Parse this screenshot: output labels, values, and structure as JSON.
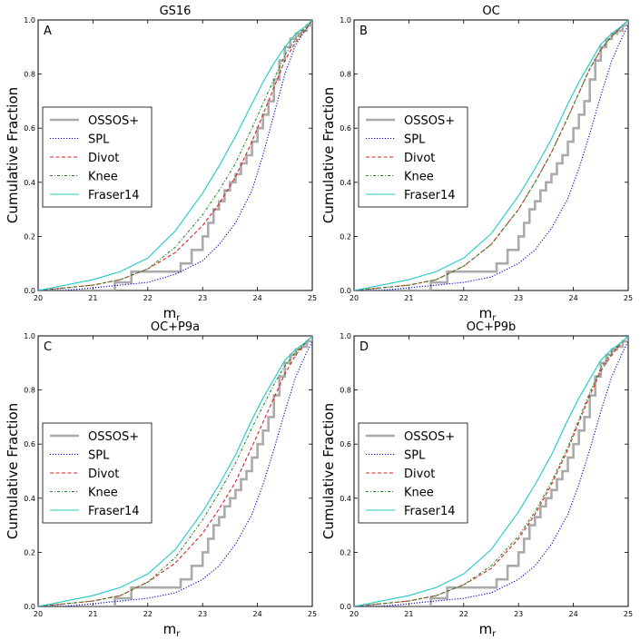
{
  "figure": {
    "type": "cumulative_fraction_grid",
    "series_colors": {
      "OSSOS+": "#aaaaaa",
      "SPL": "#0000cc",
      "Divot": "#dd2222",
      "Knee": "#228822",
      "Fraser14": "#22c9c9"
    }
  },
  "chart_data": [
    {
      "type": "line",
      "title": "GS16",
      "letter": "A",
      "xlabel": "m",
      "xlabel_sub": "r",
      "ylabel": "Cumulative Fraction",
      "xlim": [
        20,
        25
      ],
      "ylim": [
        0,
        1
      ],
      "xticks": [
        "20",
        "21",
        "22",
        "23",
        "24",
        "25"
      ],
      "yticks": [
        "0.0",
        "0.2",
        "0.4",
        "0.6",
        "0.8",
        "1.0"
      ],
      "legend": [
        "OSSOS+",
        "SPL",
        "Divot",
        "Knee",
        "Fraser14"
      ],
      "legend_loc": "center-left",
      "series": [
        {
          "name": "OSSOS+",
          "style": "solid-thick",
          "x": [
            20.0,
            21.0,
            21.4,
            21.7,
            22.0,
            22.4,
            22.6,
            22.8,
            23.0,
            23.1,
            23.2,
            23.3,
            23.4,
            23.5,
            23.6,
            23.7,
            23.8,
            23.9,
            24.0,
            24.1,
            24.2,
            24.3,
            24.4,
            24.5,
            24.6,
            24.7,
            24.8,
            24.9,
            25.0
          ],
          "y": [
            0.0,
            0.0,
            0.03,
            0.07,
            0.07,
            0.07,
            0.1,
            0.15,
            0.2,
            0.25,
            0.3,
            0.33,
            0.37,
            0.4,
            0.43,
            0.47,
            0.5,
            0.55,
            0.6,
            0.65,
            0.7,
            0.78,
            0.85,
            0.9,
            0.93,
            0.95,
            0.96,
            0.98,
            1.0
          ]
        },
        {
          "name": "SPL",
          "style": "dotted",
          "x": [
            20.0,
            20.5,
            21.0,
            21.5,
            22.0,
            22.5,
            23.0,
            23.3,
            23.6,
            23.9,
            24.1,
            24.3,
            24.5,
            24.7,
            24.9,
            25.0
          ],
          "y": [
            0.0,
            0.0,
            0.01,
            0.02,
            0.03,
            0.06,
            0.11,
            0.17,
            0.25,
            0.37,
            0.5,
            0.65,
            0.8,
            0.91,
            0.97,
            1.0
          ]
        },
        {
          "name": "Divot",
          "style": "dashed",
          "x": [
            20.0,
            20.5,
            21.0,
            21.5,
            22.0,
            22.5,
            23.0,
            23.3,
            23.6,
            23.9,
            24.1,
            24.3,
            24.5,
            24.7,
            24.9,
            25.0
          ],
          "y": [
            0.0,
            0.01,
            0.02,
            0.04,
            0.08,
            0.14,
            0.24,
            0.32,
            0.42,
            0.55,
            0.65,
            0.75,
            0.85,
            0.92,
            0.97,
            1.0
          ]
        },
        {
          "name": "Knee",
          "style": "dashdot",
          "x": [
            20.0,
            20.5,
            21.0,
            21.5,
            22.0,
            22.5,
            23.0,
            23.3,
            23.6,
            23.9,
            24.1,
            24.3,
            24.5,
            24.7,
            24.9,
            25.0
          ],
          "y": [
            0.0,
            0.01,
            0.02,
            0.04,
            0.08,
            0.16,
            0.28,
            0.37,
            0.47,
            0.6,
            0.69,
            0.78,
            0.87,
            0.93,
            0.98,
            1.0
          ]
        },
        {
          "name": "Fraser14",
          "style": "solid",
          "x": [
            20.0,
            20.5,
            21.0,
            21.5,
            22.0,
            22.5,
            23.0,
            23.3,
            23.6,
            23.9,
            24.1,
            24.3,
            24.5,
            24.7,
            24.9,
            25.0
          ],
          "y": [
            0.0,
            0.02,
            0.04,
            0.07,
            0.12,
            0.22,
            0.36,
            0.46,
            0.57,
            0.69,
            0.77,
            0.84,
            0.9,
            0.95,
            0.98,
            1.0
          ]
        }
      ]
    },
    {
      "type": "line",
      "title": "OC",
      "letter": "B",
      "xlabel": "m",
      "xlabel_sub": "r",
      "ylabel": "Cumulative Fraction",
      "xlim": [
        20,
        25
      ],
      "ylim": [
        0,
        1
      ],
      "xticks": [
        "20",
        "21",
        "22",
        "23",
        "24",
        "25"
      ],
      "yticks": [
        "0.0",
        "0.2",
        "0.4",
        "0.6",
        "0.8",
        "1.0"
      ],
      "legend": [
        "OSSOS+",
        "SPL",
        "Divot",
        "Knee",
        "Fraser14"
      ],
      "legend_loc": "center-left",
      "series": [
        {
          "name": "OSSOS+",
          "style": "solid-thick",
          "x": [
            20.0,
            21.0,
            21.4,
            21.7,
            22.0,
            22.4,
            22.6,
            22.8,
            23.0,
            23.1,
            23.2,
            23.3,
            23.4,
            23.5,
            23.6,
            23.7,
            23.8,
            23.9,
            24.0,
            24.1,
            24.2,
            24.3,
            24.4,
            24.5,
            24.6,
            24.7,
            24.8,
            24.9,
            25.0
          ],
          "y": [
            0.0,
            0.0,
            0.03,
            0.07,
            0.07,
            0.07,
            0.1,
            0.15,
            0.2,
            0.25,
            0.3,
            0.33,
            0.37,
            0.4,
            0.43,
            0.47,
            0.5,
            0.55,
            0.6,
            0.65,
            0.7,
            0.78,
            0.85,
            0.9,
            0.93,
            0.95,
            0.96,
            0.98,
            1.0
          ]
        },
        {
          "name": "SPL",
          "style": "dotted",
          "x": [
            20.0,
            20.5,
            21.0,
            21.5,
            22.0,
            22.5,
            23.0,
            23.3,
            23.6,
            23.9,
            24.1,
            24.3,
            24.5,
            24.7,
            24.9,
            25.0
          ],
          "y": [
            0.0,
            0.0,
            0.01,
            0.02,
            0.03,
            0.05,
            0.1,
            0.15,
            0.23,
            0.34,
            0.45,
            0.58,
            0.72,
            0.85,
            0.94,
            0.98
          ]
        },
        {
          "name": "Divot",
          "style": "dashed",
          "x": [
            20.0,
            20.5,
            21.0,
            21.5,
            22.0,
            22.5,
            23.0,
            23.3,
            23.6,
            23.9,
            24.1,
            24.3,
            24.5,
            24.7,
            24.9,
            25.0
          ],
          "y": [
            0.0,
            0.01,
            0.02,
            0.04,
            0.09,
            0.17,
            0.3,
            0.4,
            0.51,
            0.64,
            0.73,
            0.82,
            0.89,
            0.94,
            0.98,
            1.0
          ]
        },
        {
          "name": "Knee",
          "style": "dashdot",
          "x": [
            20.0,
            20.5,
            21.0,
            21.5,
            22.0,
            22.5,
            23.0,
            23.3,
            23.6,
            23.9,
            24.1,
            24.3,
            24.5,
            24.7,
            24.9,
            25.0
          ],
          "y": [
            0.0,
            0.01,
            0.02,
            0.04,
            0.09,
            0.17,
            0.3,
            0.4,
            0.51,
            0.64,
            0.73,
            0.82,
            0.89,
            0.94,
            0.98,
            1.0
          ]
        },
        {
          "name": "Fraser14",
          "style": "solid",
          "x": [
            20.0,
            20.5,
            21.0,
            21.5,
            22.0,
            22.5,
            23.0,
            23.3,
            23.6,
            23.9,
            24.1,
            24.3,
            24.5,
            24.7,
            24.9,
            25.0
          ],
          "y": [
            0.0,
            0.02,
            0.04,
            0.07,
            0.12,
            0.21,
            0.35,
            0.45,
            0.56,
            0.69,
            0.77,
            0.84,
            0.91,
            0.95,
            0.98,
            1.0
          ]
        }
      ]
    },
    {
      "type": "line",
      "title": "OC+P9a",
      "letter": "C",
      "xlabel": "m",
      "xlabel_sub": "r",
      "ylabel": "Cumulative Fraction",
      "xlim": [
        20,
        25
      ],
      "ylim": [
        0,
        1
      ],
      "xticks": [
        "20",
        "21",
        "22",
        "23",
        "24",
        "25"
      ],
      "yticks": [
        "0.0",
        "0.2",
        "0.4",
        "0.6",
        "0.8",
        "1.0"
      ],
      "legend": [
        "OSSOS+",
        "SPL",
        "Divot",
        "Knee",
        "Fraser14"
      ],
      "legend_loc": "center-left",
      "series": [
        {
          "name": "OSSOS+",
          "style": "solid-thick",
          "x": [
            20.0,
            21.0,
            21.4,
            21.7,
            22.0,
            22.4,
            22.6,
            22.8,
            23.0,
            23.1,
            23.2,
            23.3,
            23.4,
            23.5,
            23.6,
            23.7,
            23.8,
            23.9,
            24.0,
            24.1,
            24.2,
            24.3,
            24.4,
            24.5,
            24.6,
            24.7,
            24.8,
            24.9,
            25.0
          ],
          "y": [
            0.0,
            0.0,
            0.03,
            0.07,
            0.07,
            0.07,
            0.1,
            0.15,
            0.2,
            0.25,
            0.3,
            0.33,
            0.37,
            0.4,
            0.43,
            0.47,
            0.5,
            0.55,
            0.6,
            0.65,
            0.7,
            0.78,
            0.85,
            0.9,
            0.93,
            0.95,
            0.96,
            0.98,
            1.0
          ]
        },
        {
          "name": "SPL",
          "style": "dotted",
          "x": [
            20.0,
            20.5,
            21.0,
            21.5,
            22.0,
            22.5,
            23.0,
            23.3,
            23.6,
            23.9,
            24.1,
            24.3,
            24.5,
            24.7,
            24.9,
            25.0
          ],
          "y": [
            0.0,
            0.0,
            0.01,
            0.02,
            0.03,
            0.05,
            0.1,
            0.15,
            0.23,
            0.34,
            0.45,
            0.58,
            0.72,
            0.85,
            0.94,
            0.98
          ]
        },
        {
          "name": "Divot",
          "style": "dashed",
          "x": [
            20.0,
            20.5,
            21.0,
            21.5,
            22.0,
            22.5,
            23.0,
            23.3,
            23.6,
            23.9,
            24.1,
            24.3,
            24.5,
            24.7,
            24.9,
            25.0
          ],
          "y": [
            0.0,
            0.01,
            0.02,
            0.04,
            0.09,
            0.16,
            0.27,
            0.36,
            0.46,
            0.59,
            0.68,
            0.77,
            0.86,
            0.93,
            0.98,
            1.0
          ]
        },
        {
          "name": "Knee",
          "style": "dashdot",
          "x": [
            20.0,
            20.5,
            21.0,
            21.5,
            22.0,
            22.5,
            23.0,
            23.3,
            23.6,
            23.9,
            24.1,
            24.3,
            24.5,
            24.7,
            24.9,
            25.0
          ],
          "y": [
            0.0,
            0.01,
            0.02,
            0.04,
            0.09,
            0.18,
            0.32,
            0.42,
            0.53,
            0.66,
            0.74,
            0.82,
            0.89,
            0.94,
            0.98,
            1.0
          ]
        },
        {
          "name": "Fraser14",
          "style": "solid",
          "x": [
            20.0,
            20.5,
            21.0,
            21.5,
            22.0,
            22.5,
            23.0,
            23.3,
            23.6,
            23.9,
            24.1,
            24.3,
            24.5,
            24.7,
            24.9,
            25.0
          ],
          "y": [
            0.0,
            0.02,
            0.04,
            0.07,
            0.12,
            0.21,
            0.35,
            0.45,
            0.56,
            0.69,
            0.77,
            0.84,
            0.91,
            0.95,
            0.98,
            1.0
          ]
        }
      ]
    },
    {
      "type": "line",
      "title": "OC+P9b",
      "letter": "D",
      "xlabel": "m",
      "xlabel_sub": "r",
      "ylabel": "Cumulative Fraction",
      "xlim": [
        20,
        25
      ],
      "ylim": [
        0,
        1
      ],
      "xticks": [
        "20",
        "21",
        "22",
        "23",
        "24",
        "25"
      ],
      "yticks": [
        "0.0",
        "0.2",
        "0.4",
        "0.6",
        "0.8",
        "1.0"
      ],
      "legend": [
        "OSSOS+",
        "SPL",
        "Divot",
        "Knee",
        "Fraser14"
      ],
      "legend_loc": "center-left",
      "series": [
        {
          "name": "OSSOS+",
          "style": "solid-thick",
          "x": [
            20.0,
            21.0,
            21.4,
            21.7,
            22.0,
            22.4,
            22.6,
            22.8,
            23.0,
            23.1,
            23.2,
            23.3,
            23.4,
            23.5,
            23.6,
            23.7,
            23.8,
            23.9,
            24.0,
            24.1,
            24.2,
            24.3,
            24.4,
            24.5,
            24.6,
            24.7,
            24.8,
            24.9,
            25.0
          ],
          "y": [
            0.0,
            0.0,
            0.03,
            0.07,
            0.07,
            0.07,
            0.1,
            0.15,
            0.2,
            0.25,
            0.3,
            0.33,
            0.37,
            0.4,
            0.43,
            0.47,
            0.5,
            0.55,
            0.6,
            0.65,
            0.7,
            0.78,
            0.85,
            0.9,
            0.93,
            0.95,
            0.96,
            0.98,
            1.0
          ]
        },
        {
          "name": "SPL",
          "style": "dotted",
          "x": [
            20.0,
            20.5,
            21.0,
            21.5,
            22.0,
            22.5,
            23.0,
            23.3,
            23.6,
            23.9,
            24.1,
            24.3,
            24.5,
            24.7,
            24.9,
            25.0
          ],
          "y": [
            0.0,
            0.0,
            0.01,
            0.02,
            0.03,
            0.05,
            0.1,
            0.15,
            0.23,
            0.34,
            0.45,
            0.58,
            0.72,
            0.85,
            0.94,
            0.98
          ]
        },
        {
          "name": "Divot",
          "style": "dashed",
          "x": [
            20.0,
            20.5,
            21.0,
            21.5,
            22.0,
            22.5,
            23.0,
            23.3,
            23.6,
            23.9,
            24.1,
            24.3,
            24.5,
            24.7,
            24.9,
            25.0
          ],
          "y": [
            0.0,
            0.01,
            0.02,
            0.04,
            0.08,
            0.14,
            0.25,
            0.34,
            0.45,
            0.58,
            0.68,
            0.78,
            0.87,
            0.93,
            0.98,
            1.0
          ]
        },
        {
          "name": "Knee",
          "style": "dashdot",
          "x": [
            20.0,
            20.5,
            21.0,
            21.5,
            22.0,
            22.5,
            23.0,
            23.3,
            23.6,
            23.9,
            24.1,
            24.3,
            24.5,
            24.7,
            24.9,
            25.0
          ],
          "y": [
            0.0,
            0.01,
            0.02,
            0.04,
            0.08,
            0.15,
            0.26,
            0.35,
            0.46,
            0.59,
            0.69,
            0.79,
            0.88,
            0.94,
            0.98,
            1.0
          ]
        },
        {
          "name": "Fraser14",
          "style": "solid",
          "x": [
            20.0,
            20.5,
            21.0,
            21.5,
            22.0,
            22.5,
            23.0,
            23.3,
            23.6,
            23.9,
            24.1,
            24.3,
            24.5,
            24.7,
            24.9,
            25.0
          ],
          "y": [
            0.0,
            0.02,
            0.04,
            0.07,
            0.12,
            0.21,
            0.35,
            0.45,
            0.56,
            0.69,
            0.77,
            0.84,
            0.91,
            0.95,
            0.98,
            1.0
          ]
        }
      ]
    }
  ]
}
